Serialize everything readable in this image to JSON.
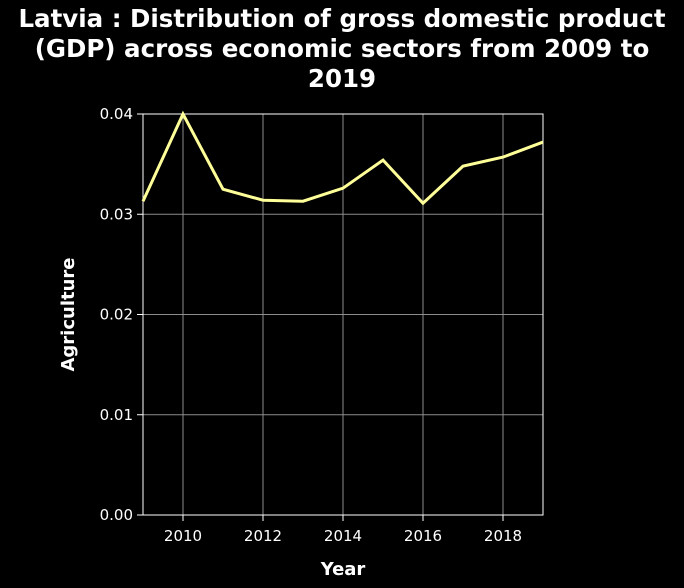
{
  "chart_data": {
    "type": "line",
    "title": "Latvia : Distribution of gross domestic product (GDP) across economic sectors from 2009 to 2019",
    "xlabel": "Year",
    "ylabel": "Agriculture",
    "xlim": [
      2009,
      2019
    ],
    "ylim": [
      0,
      0.04
    ],
    "x_ticks": [
      2010,
      2012,
      2014,
      2016,
      2018
    ],
    "y_ticks": [
      "0.00",
      "0.01",
      "0.02",
      "0.03",
      "0.04"
    ],
    "grid": true,
    "line_color": "#ffff99",
    "series": [
      {
        "x": [
          2009,
          2010,
          2011,
          2012,
          2013,
          2014,
          2015,
          2016,
          2017,
          2018,
          2019
        ],
        "values": [
          0.0313,
          0.04,
          0.0325,
          0.0314,
          0.0313,
          0.0326,
          0.0354,
          0.0311,
          0.0348,
          0.0357,
          0.0372
        ]
      }
    ]
  }
}
